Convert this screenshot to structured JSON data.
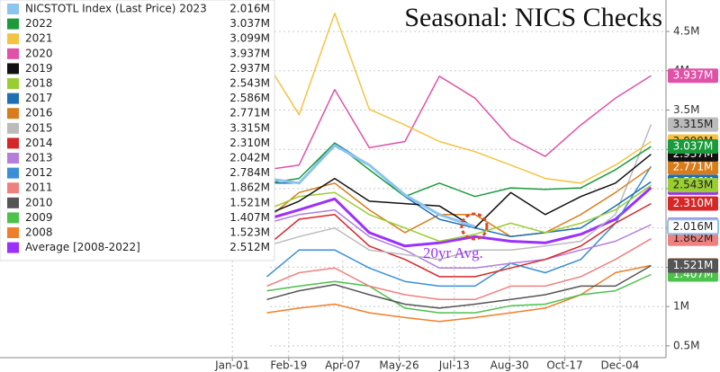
{
  "chart_data": {
    "type": "line",
    "title": "Seasonal: NICS Checks",
    "annotation": "20yr Avg.",
    "x": [
      31,
      59,
      90,
      120,
      151,
      181,
      212,
      243,
      273,
      304,
      334,
      365
    ],
    "xlim": [
      -201,
      378
    ],
    "xticks": [
      {
        "value": 1,
        "label": "Jan-01"
      },
      {
        "value": 50,
        "label": "Feb-19"
      },
      {
        "value": 97,
        "label": "Apr-07"
      },
      {
        "value": 146,
        "label": "May-26"
      },
      {
        "value": 194,
        "label": "Jul-13"
      },
      {
        "value": 242,
        "label": "Aug-30"
      },
      {
        "value": 290,
        "label": "Oct-17"
      },
      {
        "value": 338,
        "label": "Dec-04"
      }
    ],
    "ylim": [
      0.35,
      4.9
    ],
    "yticks": [
      {
        "value": 0.5,
        "label": "0.5M"
      },
      {
        "value": 1,
        "label": "1M"
      },
      {
        "value": 1.5,
        "label": "1.5M"
      },
      {
        "value": 2,
        "label": "2M"
      },
      {
        "value": 2.5,
        "label": "2.5M"
      },
      {
        "value": 3,
        "label": "3M"
      },
      {
        "value": 3.5,
        "label": "3.5M"
      },
      {
        "value": 4,
        "label": "4M"
      },
      {
        "value": 4.5,
        "label": "4.5M"
      }
    ],
    "grid": true,
    "series": [
      {
        "name": "NICSTOTL Index (Last Price) 2023",
        "color": "#8cc4f0",
        "last_value": 2.016,
        "last_label": "2.016M",
        "values": [
          2.63,
          2.57,
          3.05,
          2.8,
          2.42,
          2.17,
          2.016,
          null,
          null,
          null,
          null,
          null
        ]
      },
      {
        "name": "2022",
        "color": "#1a9a3a",
        "last_value": 3.037,
        "last_label": "3.037M",
        "values": [
          2.57,
          2.63,
          3.08,
          2.74,
          2.4,
          2.57,
          2.4,
          2.51,
          2.49,
          2.51,
          2.74,
          3.037
        ]
      },
      {
        "name": "2021",
        "color": "#f5c342",
        "last_value": 3.099,
        "last_label": "3.099M",
        "values": [
          4.1,
          3.44,
          4.73,
          3.51,
          3.31,
          3.1,
          2.97,
          2.8,
          2.63,
          2.57,
          2.8,
          3.099
        ]
      },
      {
        "name": "2020",
        "color": "#e052a8",
        "last_value": 3.937,
        "last_label": "3.937M",
        "values": [
          2.74,
          2.8,
          3.76,
          3.02,
          3.1,
          3.93,
          3.65,
          3.14,
          2.91,
          3.31,
          3.65,
          3.937
        ]
      },
      {
        "name": "2019",
        "color": "#111111",
        "last_value": 2.937,
        "last_label": "2.937M",
        "values": [
          2.17,
          2.34,
          2.63,
          2.34,
          2.31,
          2.28,
          2.0,
          2.45,
          2.17,
          2.4,
          2.57,
          2.937
        ]
      },
      {
        "name": "2018",
        "color": "#9acd32",
        "last_value": 2.543,
        "last_label": "2.543M",
        "values": [
          2.23,
          2.4,
          2.45,
          2.17,
          2.0,
          1.83,
          1.92,
          2.06,
          1.94,
          2.06,
          2.23,
          2.543
        ]
      },
      {
        "name": "2017",
        "color": "#1f6fb5",
        "last_value": 2.586,
        "last_label": "2.586M",
        "values": [
          2.57,
          2.57,
          3.08,
          2.8,
          2.4,
          2.11,
          2.0,
          1.89,
          1.94,
          2.0,
          2.28,
          2.586
        ]
      },
      {
        "name": "2016",
        "color": "#d97c1a",
        "last_value": 2.771,
        "last_label": "2.771M",
        "values": [
          2.11,
          2.45,
          2.57,
          2.23,
          1.94,
          2.17,
          2.17,
          1.89,
          1.94,
          2.17,
          2.45,
          2.771
        ]
      },
      {
        "name": "2015",
        "color": "#bbbbbb",
        "last_value": 3.315,
        "last_label": "3.315M",
        "values": [
          1.77,
          1.89,
          2.0,
          1.72,
          1.66,
          1.6,
          1.72,
          1.72,
          1.77,
          1.83,
          2.17,
          3.315
        ]
      },
      {
        "name": "2014",
        "color": "#d62728",
        "last_value": 2.31,
        "last_label": "2.310M",
        "values": [
          1.77,
          2.11,
          2.17,
          1.77,
          1.6,
          1.38,
          1.38,
          1.49,
          1.6,
          1.77,
          2.06,
          2.31
        ]
      },
      {
        "name": "2013",
        "color": "#b57edc",
        "last_value": 2.042,
        "last_label": "2.042M",
        "values": [
          2.06,
          2.17,
          2.23,
          1.89,
          1.72,
          1.49,
          1.49,
          1.55,
          1.6,
          1.72,
          1.83,
          2.042
        ]
      },
      {
        "name": "2012",
        "color": "#3a8fd8",
        "last_value": 2.784,
        "last_label": "2.784M",
        "values": [
          1.38,
          1.72,
          1.72,
          1.49,
          1.32,
          1.26,
          1.26,
          1.55,
          1.43,
          1.6,
          2.06,
          2.784
        ]
      },
      {
        "name": "2011",
        "color": "#f08080",
        "last_value": 1.862,
        "last_label": "1.862M",
        "values": [
          1.26,
          1.43,
          1.49,
          1.26,
          1.15,
          1.09,
          1.09,
          1.26,
          1.26,
          1.38,
          1.6,
          1.862
        ]
      },
      {
        "name": "2010",
        "color": "#555555",
        "last_value": 1.521,
        "last_label": "1.521M",
        "values": [
          1.09,
          1.2,
          1.28,
          1.15,
          1.03,
          0.98,
          1.03,
          1.09,
          1.15,
          1.26,
          1.26,
          1.521
        ]
      },
      {
        "name": "2009",
        "color": "#4cc24c",
        "last_value": 1.407,
        "last_label": "1.407M",
        "values": [
          1.2,
          1.26,
          1.32,
          1.26,
          0.98,
          0.92,
          0.92,
          1.01,
          1.03,
          1.15,
          1.2,
          1.407
        ]
      },
      {
        "name": "2008",
        "color": "#f07f2a",
        "last_value": 1.523,
        "last_label": "1.523M",
        "values": [
          0.92,
          0.98,
          1.03,
          0.92,
          0.86,
          0.81,
          0.86,
          0.92,
          0.98,
          1.15,
          1.43,
          1.523
        ]
      },
      {
        "name": "Average [2008-2022]",
        "color": "#9b30ff",
        "last_value": 2.512,
        "last_label": "2.512M",
        "values": [
          2.11,
          2.23,
          2.37,
          1.94,
          1.77,
          1.81,
          1.89,
          1.83,
          1.81,
          1.92,
          2.11,
          2.512
        ]
      }
    ]
  }
}
